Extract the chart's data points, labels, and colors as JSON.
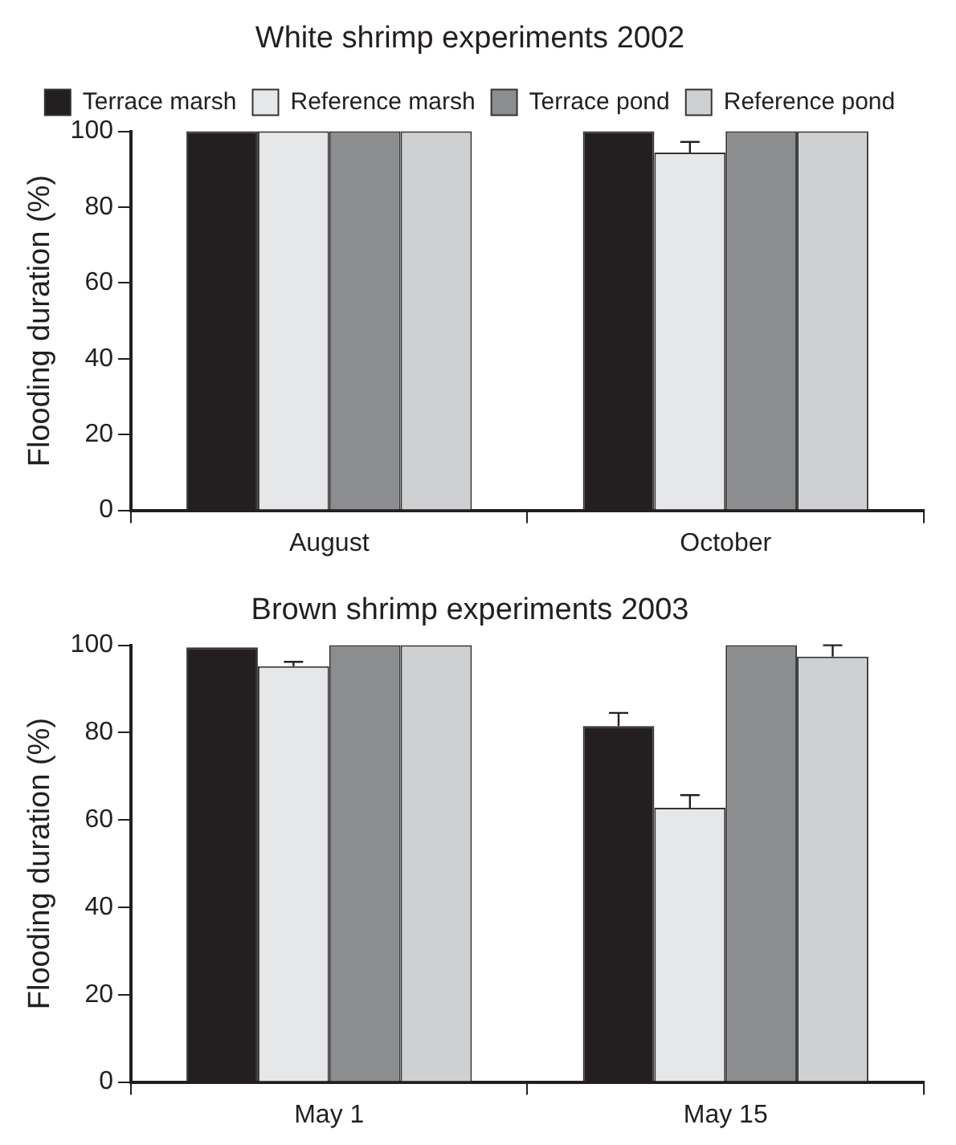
{
  "chart_data": [
    {
      "type": "bar",
      "title": "White shrimp experiments 2002",
      "ylabel": "Flooding duration (%)",
      "categories": [
        "August",
        "October"
      ],
      "ylim": [
        0,
        100
      ],
      "yticks": [
        0,
        20,
        40,
        60,
        80,
        100
      ],
      "grid": false,
      "legend": "top",
      "series": [
        {
          "name": "Terrace marsh",
          "color": "#231f20",
          "values": [
            100,
            100
          ]
        },
        {
          "name": "Reference marsh",
          "color": "#e6e7e8",
          "values": [
            100,
            94.4
          ],
          "errors": [
            null,
            [
              94.4,
              97.2
            ]
          ]
        },
        {
          "name": "Terrace pond",
          "color": "#8c8d8f",
          "values": [
            100,
            100
          ]
        },
        {
          "name": "Reference pond",
          "color": "#cfd0d2",
          "values": [
            100,
            100
          ]
        }
      ]
    },
    {
      "type": "bar",
      "title": "Brown shrimp experiments 2003",
      "ylabel": "Flooding duration (%)",
      "categories": [
        "May 1",
        "May 15"
      ],
      "ylim": [
        0,
        100
      ],
      "yticks": [
        0,
        20,
        40,
        60,
        80,
        100
      ],
      "grid": false,
      "series": [
        {
          "color": "#231f20",
          "values": [
            99.5,
            81.5
          ],
          "errors": [
            null,
            [
              81.5,
              84.5
            ]
          ]
        },
        {
          "color": "#e6e7e8",
          "values": [
            95.2,
            62.8
          ],
          "errors": [
            [
              95.2,
              96.2
            ],
            [
              62.8,
              65.7
            ]
          ]
        },
        {
          "color": "#8c8d8f",
          "values": [
            100,
            100
          ]
        },
        {
          "color": "#cfd0d2",
          "values": [
            100,
            97.4
          ],
          "errors": [
            null,
            [
              97.4,
              100
            ]
          ]
        }
      ]
    }
  ]
}
